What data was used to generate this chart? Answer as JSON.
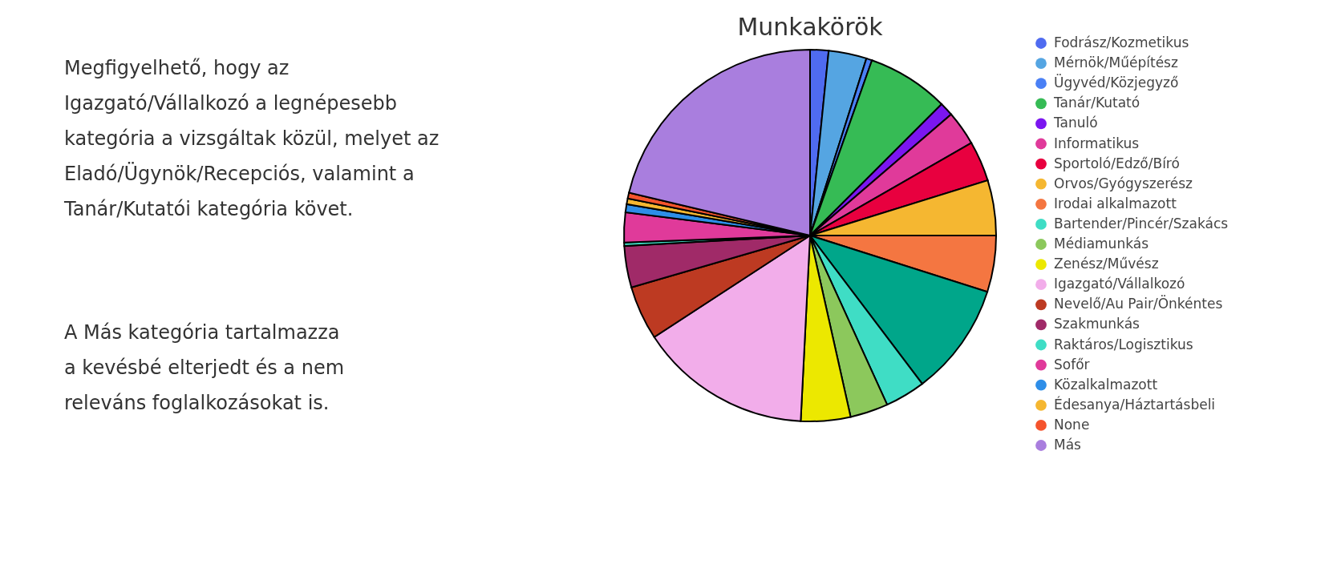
{
  "chart_data": {
    "type": "pie",
    "title": "Munkakörök",
    "categories": [
      "Fodrász/Kozmetikus",
      "Mérnök/Műépítész",
      "Ügyvéd/Közjegyző",
      "Tanár/Kutató",
      "Tanuló",
      "Informatikus",
      "Sportoló/Edző/Bíró",
      "Orvos/Gyógyszerész",
      "Irodai alkalmazott",
      null,
      "Bartender/Pincér/Szakács",
      "Médiamunkás",
      "Zenész/Művész",
      "Igazgató/Vállalkozó",
      "Nevelő/Au Pair/Önkéntes",
      "Szakmunkás",
      "Raktáros/Logisztikus",
      "Sofőr",
      "Közalkalmazott",
      "Édesanya/Háztartásbeli",
      "None",
      "Más"
    ],
    "values": [
      1.6,
      3.3,
      0.5,
      7.1,
      1.2,
      3.0,
      3.5,
      4.8,
      4.9,
      9.8,
      3.5,
      3.3,
      4.3,
      15.0,
      4.7,
      3.6,
      0.3,
      2.6,
      0.7,
      0.5,
      0.5,
      21.3
    ],
    "colors": [
      "#4f6bf0",
      "#55a5e2",
      "#4a80f5",
      "#36bb55",
      "#7b16f0",
      "#e03a9a",
      "#e8003f",
      "#f5b731",
      "#f47641",
      "#00a68a",
      "#3fddc5",
      "#8cc85c",
      "#ece800",
      "#f2adea",
      "#bd3a22",
      "#a02a68",
      "#3fddc5",
      "#e03a9a",
      "#2e8ee8",
      "#f5b731",
      "#f5542d",
      "#a97ede"
    ],
    "legend": "right",
    "annotations": [
      "Megfigyelhető, hogy az\nIgazgató/Vállalkozó a legnépesebb\nkategória a vizsgáltak közül, melyet az\nEladó/Ügynök/Recepciós, valamint a\nTanár/Kutatói kategória követ.",
      "A Más kategória tartalmazza\na kevésbé elterjedt és a nem\nreleváns foglalkozásokat is."
    ]
  }
}
